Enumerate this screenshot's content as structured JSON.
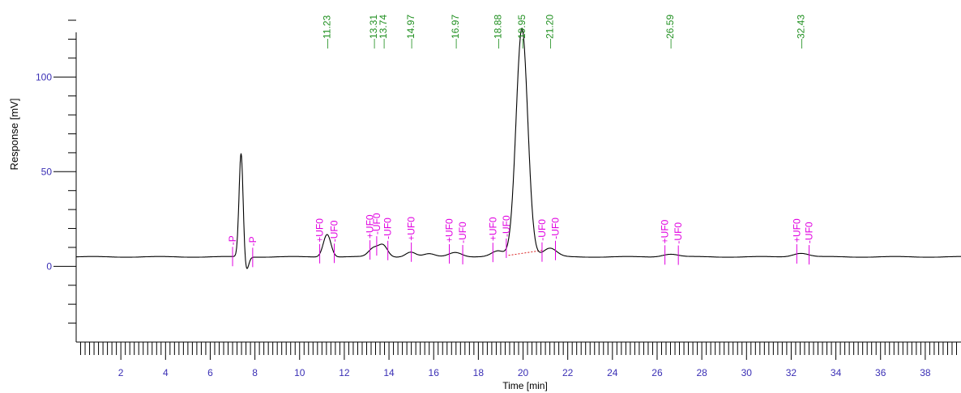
{
  "chart_data": {
    "type": "line",
    "xlabel": "Time [min]",
    "ylabel": "Response [mV]",
    "xlim": [
      0,
      39.6
    ],
    "ylim": [
      -40,
      133
    ],
    "x_ticks": [
      2,
      4,
      6,
      8,
      10,
      12,
      14,
      16,
      18,
      20,
      22,
      24,
      26,
      28,
      30,
      32,
      34,
      36,
      38
    ],
    "y_ticks": [
      0,
      50,
      100
    ],
    "grid": false,
    "legend": "none",
    "colors": {
      "trace": "#000000",
      "axes": "#000000",
      "axis_label": "#3a2fb5",
      "tick_label": "#3a2fb5",
      "retention_label": "#1f8f1f",
      "event_marker": "#e000e0",
      "integration_baseline": "#d91a1a"
    },
    "series": [
      {
        "baseline": 5,
        "peaks": [
          {
            "rt": 7.38,
            "height": 55,
            "width": 0.09
          },
          {
            "rt": 7.62,
            "height": -7,
            "width": 0.1
          },
          {
            "rt": 11.23,
            "height": 12,
            "width": 0.17
          },
          {
            "rt": 13.31,
            "height": 4.5,
            "width": 0.22
          },
          {
            "rt": 13.74,
            "height": 6,
            "width": 0.2
          },
          {
            "rt": 14.97,
            "height": 2.5,
            "width": 0.22
          },
          {
            "rt": 15.8,
            "height": 1.5,
            "width": 0.25
          },
          {
            "rt": 16.97,
            "height": 2.5,
            "width": 0.3
          },
          {
            "rt": 18.88,
            "height": 3,
            "width": 0.28
          },
          {
            "rt": 19.95,
            "height": 121,
            "width": 0.26
          },
          {
            "rt": 21.2,
            "height": 4.5,
            "width": 0.3
          },
          {
            "rt": 26.59,
            "height": 1.5,
            "width": 0.35
          },
          {
            "rt": 32.43,
            "height": 2,
            "width": 0.35
          }
        ]
      }
    ],
    "retention_labels": [
      "11.23",
      "13.31",
      "13.74",
      "14.97",
      "16.97",
      "18.88",
      "19.95",
      "21.20",
      "26.59",
      "32.43"
    ],
    "retention_times": [
      11.23,
      13.31,
      13.74,
      14.97,
      16.97,
      18.88,
      19.95,
      21.2,
      26.59,
      32.43
    ],
    "events": [
      {
        "t": 7.0,
        "label": "-P"
      },
      {
        "t": 7.9,
        "label": "-P"
      },
      {
        "t": 10.9,
        "label": "+UF0"
      },
      {
        "t": 11.55,
        "label": "-UF0"
      },
      {
        "t": 13.15,
        "label": "+UF0"
      },
      {
        "t": 13.45,
        "label": "-UF0"
      },
      {
        "t": 13.95,
        "label": "-UF0"
      },
      {
        "t": 15.0,
        "label": "+UF0"
      },
      {
        "t": 16.7,
        "label": "+UF0"
      },
      {
        "t": 17.3,
        "label": "-UF0"
      },
      {
        "t": 18.65,
        "label": "+UF0"
      },
      {
        "t": 19.25,
        "label": "-UF0"
      },
      {
        "t": 20.85,
        "label": "-UF0"
      },
      {
        "t": 21.45,
        "label": "-UF0"
      },
      {
        "t": 26.35,
        "label": "+UF0"
      },
      {
        "t": 26.95,
        "label": "-UF0"
      },
      {
        "t": 32.25,
        "label": "+UF0"
      },
      {
        "t": 32.8,
        "label": "-UF0"
      }
    ],
    "integration_baseline": {
      "x": [
        19.35,
        20.9
      ],
      "y": [
        5.8,
        8.5
      ]
    }
  }
}
